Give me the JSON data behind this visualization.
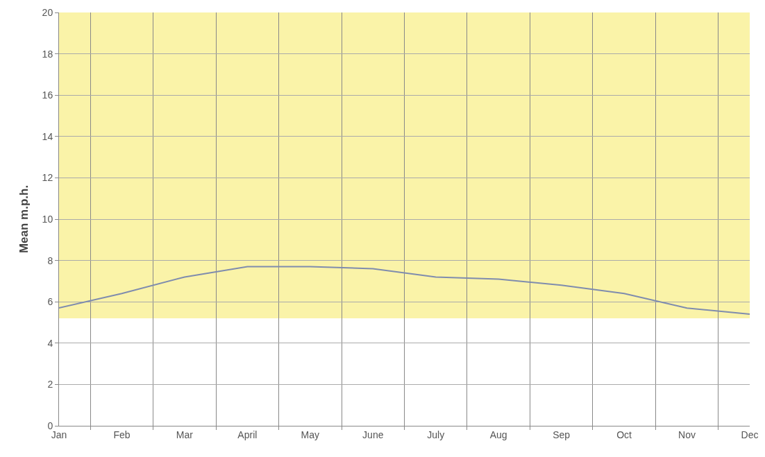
{
  "chart_data": {
    "type": "line",
    "ylabel": "Mean m.p.h.",
    "categories": [
      "Jan",
      "Feb",
      "Mar",
      "April",
      "May",
      "June",
      "July",
      "Aug",
      "Sep",
      "Oct",
      "Nov",
      "Dec"
    ],
    "series": [
      {
        "color": "#7f8cae",
        "values": [
          5.7,
          6.4,
          7.2,
          7.7,
          7.7,
          7.6,
          7.2,
          7.1,
          6.8,
          6.4,
          5.7,
          5.4
        ]
      }
    ],
    "ylim": [
      0,
      20
    ],
    "yticks": [
      0,
      2,
      4,
      6,
      8,
      10,
      12,
      14,
      16,
      18,
      20
    ],
    "bands": [
      {
        "axis": "y",
        "from": 5.2,
        "to": 20,
        "color": "#faf3a8"
      }
    ],
    "grid": true,
    "marker": "none",
    "line_style": "solid"
  }
}
